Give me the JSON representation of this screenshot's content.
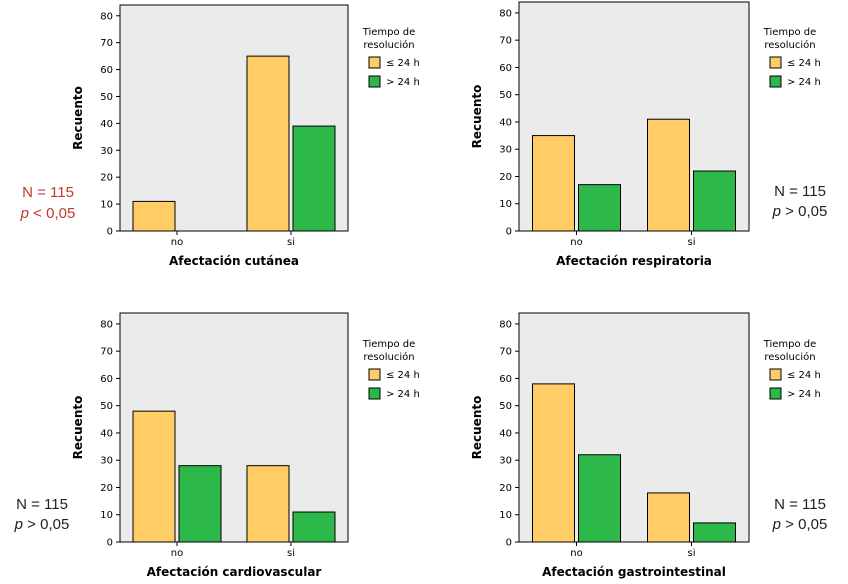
{
  "colors": {
    "le24": "#FFCC66",
    "gt24": "#2DB84A",
    "plot_bg": "#EBEBEB",
    "significant": "#C0392B",
    "not_significant": "#222222"
  },
  "legend": {
    "title_line1": "Tiempo de",
    "title_line2": "resolución",
    "items": [
      "≤ 24 h",
      "> 24 h"
    ]
  },
  "chart_data": [
    {
      "type": "bar",
      "title": "",
      "xlabel": "Afectación cutánea",
      "ylabel": "Recuento",
      "categories": [
        "no",
        "si"
      ],
      "series": [
        {
          "name": "≤ 24 h",
          "values": [
            11,
            65
          ]
        },
        {
          "name": "> 24 h",
          "values": [
            0,
            39
          ]
        }
      ],
      "ylim": [
        0,
        84
      ],
      "yticks": [
        0,
        10,
        20,
        30,
        40,
        50,
        60,
        70,
        80
      ],
      "legend": "right",
      "annotation": {
        "n": "N = 115",
        "p_symbol": "p",
        "p_rest": " < 0,05",
        "significant": true
      }
    },
    {
      "type": "bar",
      "title": "",
      "xlabel": "Afectación respiratoria",
      "ylabel": "Recuento",
      "categories": [
        "no",
        "si"
      ],
      "series": [
        {
          "name": "≤ 24 h",
          "values": [
            35,
            41
          ]
        },
        {
          "name": "> 24 h",
          "values": [
            17,
            22
          ]
        }
      ],
      "ylim": [
        0,
        84
      ],
      "yticks": [
        0,
        10,
        20,
        30,
        40,
        50,
        60,
        70,
        80
      ],
      "legend": "right",
      "annotation": {
        "n": "N = 115",
        "p_symbol": "p",
        "p_rest": " > 0,05",
        "significant": false
      }
    },
    {
      "type": "bar",
      "title": "",
      "xlabel": "Afectación cardiovascular",
      "ylabel": "Recuento",
      "categories": [
        "no",
        "si"
      ],
      "series": [
        {
          "name": "≤ 24 h",
          "values": [
            48,
            28
          ]
        },
        {
          "name": "> 24 h",
          "values": [
            28,
            11
          ]
        }
      ],
      "ylim": [
        0,
        84
      ],
      "yticks": [
        0,
        10,
        20,
        30,
        40,
        50,
        60,
        70,
        80
      ],
      "legend": "right",
      "annotation": {
        "n": "N = 115",
        "p_symbol": "p",
        "p_rest": " > 0,05",
        "significant": false
      }
    },
    {
      "type": "bar",
      "title": "",
      "xlabel": "Afectación gastrointestinal",
      "ylabel": "Recuento",
      "categories": [
        "no",
        "si"
      ],
      "series": [
        {
          "name": "≤ 24 h",
          "values": [
            58,
            18
          ]
        },
        {
          "name": "> 24 h",
          "values": [
            32,
            7
          ]
        }
      ],
      "ylim": [
        0,
        84
      ],
      "yticks": [
        0,
        10,
        20,
        30,
        40,
        50,
        60,
        70,
        80
      ],
      "legend": "right",
      "annotation": {
        "n": "N = 115",
        "p_symbol": "p",
        "p_rest": " > 0,05",
        "significant": false
      }
    }
  ]
}
